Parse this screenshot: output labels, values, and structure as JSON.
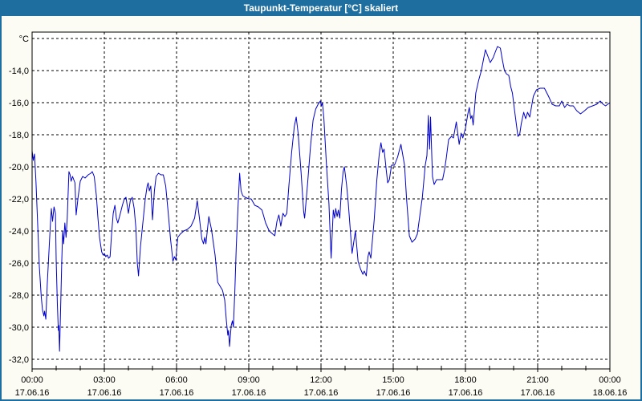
{
  "window": {
    "title": "Taupunkt-Temperatur [°C] skaliert"
  },
  "colors": {
    "titlebar_bg": "#1E6F9F",
    "titlebar_text": "#FFFFFF",
    "window_border": "#1E6F9F",
    "content_bg": "#FCFCF4",
    "plot_bg": "#FFFFFF",
    "grid": "#000000",
    "axis": "#000000",
    "label_text": "#000000",
    "series_line": "#0000C8"
  },
  "chart_data": {
    "type": "line",
    "title": "Taupunkt-Temperatur [°C] skaliert",
    "grid": "dashed",
    "legend": "none",
    "y_axis": {
      "unit": "°C",
      "min": -32.6,
      "max": -11.6,
      "ticks": [
        {
          "value": -12,
          "label": "°C"
        },
        {
          "value": -14,
          "label": "-14,0"
        },
        {
          "value": -16,
          "label": "-16,0"
        },
        {
          "value": -18,
          "label": "-18,0"
        },
        {
          "value": -20,
          "label": "-20,0"
        },
        {
          "value": -22,
          "label": "-22,0"
        },
        {
          "value": -24,
          "label": "-24,0"
        },
        {
          "value": -26,
          "label": "-26,0"
        },
        {
          "value": -28,
          "label": "-28,0"
        },
        {
          "value": -30,
          "label": "-30,0"
        },
        {
          "value": -32,
          "label": "-32,0"
        }
      ]
    },
    "x_axis": {
      "min_hours": 0,
      "max_hours": 24,
      "gridline_hours": [
        3,
        6,
        9,
        12,
        15,
        18,
        21
      ],
      "minor_tick_every_hours": 1,
      "ticks": [
        {
          "hours": 0,
          "time": "00:00",
          "date": "17.06.16"
        },
        {
          "hours": 3,
          "time": "03:00",
          "date": "17.06.16"
        },
        {
          "hours": 6,
          "time": "06:00",
          "date": "17.06.16"
        },
        {
          "hours": 9,
          "time": "09:00",
          "date": "17.06.16"
        },
        {
          "hours": 12,
          "time": "12:00",
          "date": "17.06.16"
        },
        {
          "hours": 15,
          "time": "15:00",
          "date": "17.06.16"
        },
        {
          "hours": 18,
          "time": "18:00",
          "date": "17.06.16"
        },
        {
          "hours": 21,
          "time": "21:00",
          "date": "17.06.16"
        },
        {
          "hours": 24,
          "time": "00:00",
          "date": "18.06.16"
        }
      ]
    },
    "series": [
      {
        "name": "Taupunkt-Temperatur",
        "color": "#0000C8",
        "points_t_hours_value_c": [
          [
            0.0,
            -19.0
          ],
          [
            0.05,
            -19.6
          ],
          [
            0.1,
            -19.2
          ],
          [
            0.16,
            -20.9
          ],
          [
            0.24,
            -23.9
          ],
          [
            0.3,
            -26.2
          ],
          [
            0.38,
            -28.1
          ],
          [
            0.43,
            -28.9
          ],
          [
            0.49,
            -29.3
          ],
          [
            0.52,
            -29.0
          ],
          [
            0.57,
            -29.5
          ],
          [
            0.63,
            -27.3
          ],
          [
            0.71,
            -25.0
          ],
          [
            0.77,
            -23.3
          ],
          [
            0.8,
            -22.6
          ],
          [
            0.85,
            -23.4
          ],
          [
            0.91,
            -22.5
          ],
          [
            0.97,
            -22.9
          ],
          [
            1.0,
            -25.8
          ],
          [
            1.05,
            -28.6
          ],
          [
            1.09,
            -30.2
          ],
          [
            1.11,
            -29.9
          ],
          [
            1.14,
            -31.5
          ],
          [
            1.19,
            -28.5
          ],
          [
            1.23,
            -26.0
          ],
          [
            1.27,
            -24.0
          ],
          [
            1.31,
            -24.8
          ],
          [
            1.36,
            -23.5
          ],
          [
            1.41,
            -24.4
          ],
          [
            1.46,
            -23.2
          ],
          [
            1.53,
            -20.3
          ],
          [
            1.58,
            -20.5
          ],
          [
            1.62,
            -20.9
          ],
          [
            1.68,
            -20.6
          ],
          [
            1.78,
            -21.0
          ],
          [
            1.83,
            -23.0
          ],
          [
            1.91,
            -21.9
          ],
          [
            2.0,
            -20.9
          ],
          [
            2.1,
            -20.6
          ],
          [
            2.2,
            -20.7
          ],
          [
            2.33,
            -20.5
          ],
          [
            2.44,
            -20.4
          ],
          [
            2.5,
            -20.3
          ],
          [
            2.58,
            -20.6
          ],
          [
            2.67,
            -21.8
          ],
          [
            2.73,
            -23.1
          ],
          [
            2.8,
            -24.4
          ],
          [
            2.89,
            -25.3
          ],
          [
            2.95,
            -25.5
          ],
          [
            3.0,
            -25.4
          ],
          [
            3.06,
            -25.6
          ],
          [
            3.12,
            -25.5
          ],
          [
            3.18,
            -25.7
          ],
          [
            3.24,
            -25.6
          ],
          [
            3.3,
            -24.2
          ],
          [
            3.37,
            -22.9
          ],
          [
            3.44,
            -22.4
          ],
          [
            3.5,
            -23.2
          ],
          [
            3.56,
            -23.5
          ],
          [
            3.65,
            -23.0
          ],
          [
            3.75,
            -22.4
          ],
          [
            3.83,
            -22.0
          ],
          [
            3.9,
            -21.9
          ],
          [
            4.0,
            -22.9
          ],
          [
            4.08,
            -22.1
          ],
          [
            4.16,
            -21.9
          ],
          [
            4.24,
            -22.6
          ],
          [
            4.31,
            -23.8
          ],
          [
            4.37,
            -26.0
          ],
          [
            4.42,
            -26.8
          ],
          [
            4.5,
            -25.0
          ],
          [
            4.6,
            -23.5
          ],
          [
            4.7,
            -22.0
          ],
          [
            4.78,
            -21.2
          ],
          [
            4.82,
            -21.0
          ],
          [
            4.87,
            -21.5
          ],
          [
            4.93,
            -21.2
          ],
          [
            5.0,
            -23.3
          ],
          [
            5.08,
            -21.5
          ],
          [
            5.15,
            -20.6
          ],
          [
            5.25,
            -20.4
          ],
          [
            5.35,
            -20.5
          ],
          [
            5.45,
            -20.5
          ],
          [
            5.55,
            -21.2
          ],
          [
            5.65,
            -22.8
          ],
          [
            5.75,
            -24.5
          ],
          [
            5.85,
            -25.9
          ],
          [
            5.91,
            -25.6
          ],
          [
            5.97,
            -25.8
          ],
          [
            6.05,
            -24.4
          ],
          [
            6.15,
            -24.2
          ],
          [
            6.3,
            -24.0
          ],
          [
            6.45,
            -23.9
          ],
          [
            6.6,
            -23.7
          ],
          [
            6.75,
            -23.2
          ],
          [
            6.86,
            -22.1
          ],
          [
            6.95,
            -23.2
          ],
          [
            7.05,
            -24.5
          ],
          [
            7.12,
            -24.8
          ],
          [
            7.17,
            -24.4
          ],
          [
            7.22,
            -24.8
          ],
          [
            7.34,
            -23.1
          ],
          [
            7.45,
            -23.9
          ],
          [
            7.6,
            -25.5
          ],
          [
            7.71,
            -27.2
          ],
          [
            7.91,
            -27.7
          ],
          [
            8.0,
            -28.3
          ],
          [
            8.07,
            -29.6
          ],
          [
            8.13,
            -30.5
          ],
          [
            8.16,
            -30.2
          ],
          [
            8.2,
            -31.2
          ],
          [
            8.27,
            -29.9
          ],
          [
            8.32,
            -29.6
          ],
          [
            8.36,
            -30.0
          ],
          [
            8.42,
            -27.8
          ],
          [
            8.48,
            -25.0
          ],
          [
            8.55,
            -22.6
          ],
          [
            8.62,
            -20.4
          ],
          [
            8.68,
            -21.5
          ],
          [
            8.75,
            -21.8
          ],
          [
            8.85,
            -21.9
          ],
          [
            9.0,
            -22.0
          ],
          [
            9.1,
            -22.0
          ],
          [
            9.25,
            -22.4
          ],
          [
            9.4,
            -22.5
          ],
          [
            9.55,
            -22.7
          ],
          [
            9.7,
            -23.5
          ],
          [
            9.85,
            -24.0
          ],
          [
            10.0,
            -24.2
          ],
          [
            10.08,
            -24.3
          ],
          [
            10.17,
            -23.4
          ],
          [
            10.25,
            -23.0
          ],
          [
            10.33,
            -23.7
          ],
          [
            10.42,
            -22.9
          ],
          [
            10.5,
            -23.1
          ],
          [
            10.58,
            -22.9
          ],
          [
            10.67,
            -21.1
          ],
          [
            10.78,
            -19.1
          ],
          [
            10.89,
            -17.5
          ],
          [
            10.97,
            -16.9
          ],
          [
            11.05,
            -17.9
          ],
          [
            11.17,
            -20.3
          ],
          [
            11.28,
            -22.8
          ],
          [
            11.32,
            -23.2
          ],
          [
            11.44,
            -21.1
          ],
          [
            11.56,
            -18.8
          ],
          [
            11.67,
            -17.1
          ],
          [
            11.78,
            -16.4
          ],
          [
            11.88,
            -16.1
          ],
          [
            11.97,
            -15.9
          ],
          [
            12.02,
            -16.2
          ],
          [
            12.06,
            -16.0
          ],
          [
            12.12,
            -17.0
          ],
          [
            12.22,
            -19.7
          ],
          [
            12.33,
            -22.3
          ],
          [
            12.42,
            -25.7
          ],
          [
            12.51,
            -22.7
          ],
          [
            12.57,
            -23.2
          ],
          [
            12.61,
            -22.6
          ],
          [
            12.67,
            -23.1
          ],
          [
            12.72,
            -22.7
          ],
          [
            12.78,
            -23.2
          ],
          [
            12.85,
            -21.4
          ],
          [
            12.92,
            -20.3
          ],
          [
            12.97,
            -20.0
          ],
          [
            13.06,
            -21.1
          ],
          [
            13.13,
            -22.2
          ],
          [
            13.2,
            -23.6
          ],
          [
            13.29,
            -25.4
          ],
          [
            13.43,
            -24.0
          ],
          [
            13.54,
            -25.9
          ],
          [
            13.65,
            -26.4
          ],
          [
            13.74,
            -26.7
          ],
          [
            13.8,
            -26.5
          ],
          [
            13.88,
            -26.8
          ],
          [
            13.95,
            -25.6
          ],
          [
            14.0,
            -25.3
          ],
          [
            14.07,
            -25.7
          ],
          [
            14.21,
            -23.3
          ],
          [
            14.32,
            -20.8
          ],
          [
            14.42,
            -19.2
          ],
          [
            14.49,
            -18.5
          ],
          [
            14.56,
            -19.1
          ],
          [
            14.62,
            -18.9
          ],
          [
            14.71,
            -20.2
          ],
          [
            14.77,
            -21.0
          ],
          [
            14.84,
            -20.8
          ],
          [
            14.93,
            -19.9
          ],
          [
            15.05,
            -19.9
          ],
          [
            15.18,
            -19.4
          ],
          [
            15.32,
            -18.6
          ],
          [
            15.47,
            -19.9
          ],
          [
            15.55,
            -21.9
          ],
          [
            15.67,
            -24.3
          ],
          [
            15.78,
            -24.7
          ],
          [
            15.91,
            -24.5
          ],
          [
            16.0,
            -24.2
          ],
          [
            16.1,
            -23.1
          ],
          [
            16.21,
            -21.9
          ],
          [
            16.33,
            -19.9
          ],
          [
            16.4,
            -19.3
          ],
          [
            16.46,
            -16.8
          ],
          [
            16.51,
            -18.9
          ],
          [
            16.55,
            -16.9
          ],
          [
            16.63,
            -20.6
          ],
          [
            16.7,
            -21.1
          ],
          [
            16.8,
            -20.8
          ],
          [
            16.95,
            -20.8
          ],
          [
            17.05,
            -20.8
          ],
          [
            17.13,
            -20.2
          ],
          [
            17.2,
            -19.5
          ],
          [
            17.3,
            -18.3
          ],
          [
            17.42,
            -18.1
          ],
          [
            17.5,
            -18.2
          ],
          [
            17.62,
            -17.2
          ],
          [
            17.74,
            -18.6
          ],
          [
            17.82,
            -17.9
          ],
          [
            17.89,
            -18.2
          ],
          [
            18.0,
            -17.6
          ],
          [
            18.1,
            -16.7
          ],
          [
            18.16,
            -16.3
          ],
          [
            18.22,
            -17.0
          ],
          [
            18.27,
            -16.8
          ],
          [
            18.32,
            -17.4
          ],
          [
            18.43,
            -15.4
          ],
          [
            18.55,
            -14.6
          ],
          [
            18.66,
            -14.0
          ],
          [
            18.75,
            -13.3
          ],
          [
            18.83,
            -12.7
          ],
          [
            18.93,
            -13.1
          ],
          [
            19.03,
            -13.5
          ],
          [
            19.15,
            -13.2
          ],
          [
            19.25,
            -12.8
          ],
          [
            19.33,
            -12.5
          ],
          [
            19.45,
            -12.6
          ],
          [
            19.53,
            -13.3
          ],
          [
            19.62,
            -14.0
          ],
          [
            19.7,
            -14.2
          ],
          [
            19.8,
            -14.3
          ],
          [
            19.88,
            -15.0
          ],
          [
            19.95,
            -15.4
          ],
          [
            20.05,
            -16.6
          ],
          [
            20.18,
            -18.1
          ],
          [
            20.25,
            -18.0
          ],
          [
            20.32,
            -17.3
          ],
          [
            20.42,
            -16.6
          ],
          [
            20.5,
            -17.0
          ],
          [
            20.58,
            -16.6
          ],
          [
            20.67,
            -16.9
          ],
          [
            20.82,
            -15.6
          ],
          [
            20.95,
            -15.2
          ],
          [
            21.1,
            -15.1
          ],
          [
            21.28,
            -15.1
          ],
          [
            21.45,
            -15.6
          ],
          [
            21.6,
            -16.1
          ],
          [
            21.75,
            -16.2
          ],
          [
            21.9,
            -16.2
          ],
          [
            22.0,
            -15.9
          ],
          [
            22.12,
            -16.3
          ],
          [
            22.22,
            -16.1
          ],
          [
            22.33,
            -16.2
          ],
          [
            22.48,
            -16.2
          ],
          [
            22.62,
            -16.5
          ],
          [
            22.78,
            -16.7
          ],
          [
            22.95,
            -16.5
          ],
          [
            23.1,
            -16.3
          ],
          [
            23.28,
            -16.2
          ],
          [
            23.45,
            -16.1
          ],
          [
            23.6,
            -15.9
          ],
          [
            23.72,
            -16.1
          ],
          [
            23.82,
            -16.2
          ],
          [
            24.0,
            -16.0
          ]
        ]
      }
    ]
  }
}
